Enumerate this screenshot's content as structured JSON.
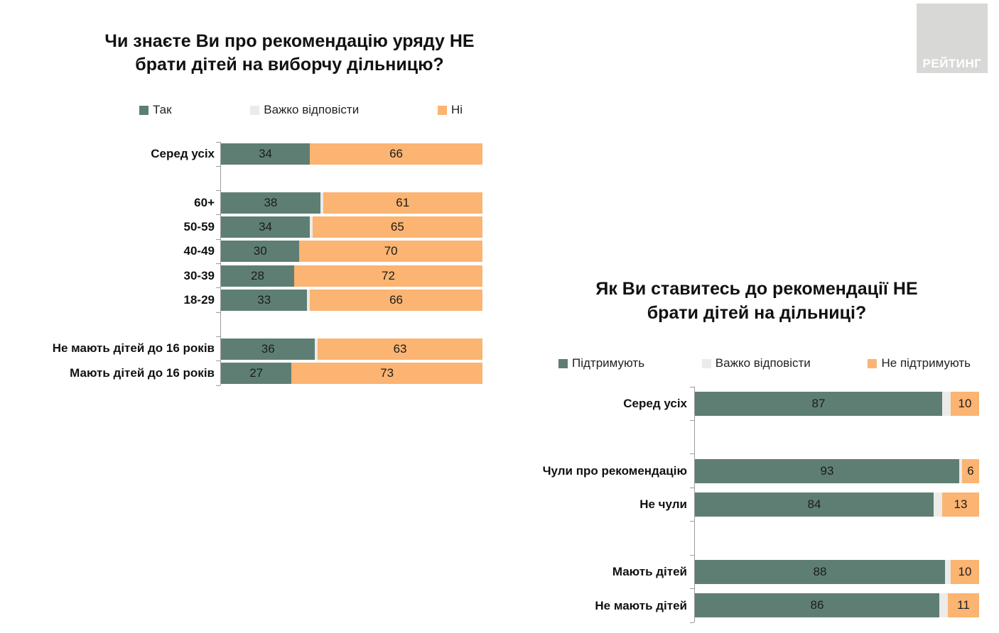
{
  "logo": {
    "label": "РЕЙТИНГ",
    "bg": "#d8d8d6",
    "text_color": "#ffffff"
  },
  "colors": {
    "green": "#5e7e74",
    "gray": "#ebebe9",
    "orange": "#fbb471",
    "axis": "#9c9c9c",
    "text": "#111111"
  },
  "chart_data": [
    {
      "type": "bar",
      "orientation": "horizontal",
      "stacked": true,
      "xlim": [
        0,
        100
      ],
      "unit": "%",
      "grid": false,
      "legend_position": "top",
      "title": "Чи знаєте Ви про рекомендацію уряду НЕ брати дітей на виборчу дільницю?",
      "title_lines": [
        "Чи знаєте Ви про рекомендацію уряду НЕ",
        "брати дітей на виборчу дільницю?"
      ],
      "series": [
        {
          "name": "Так",
          "color": "#5e7e74",
          "show_values": true
        },
        {
          "name": "Важко відповісти",
          "color": "#ebebe9",
          "show_values": false
        },
        {
          "name": "Ні",
          "color": "#fbb471",
          "show_values": true
        }
      ],
      "groups": [
        [
          {
            "label": "Серед усіх",
            "values": [
              34,
              0,
              66
            ]
          }
        ],
        [
          {
            "label": "60+",
            "values": [
              38,
              1,
              61
            ]
          },
          {
            "label": "50-59",
            "values": [
              34,
              1,
              65
            ]
          },
          {
            "label": "40-49",
            "values": [
              30,
              0,
              70
            ]
          },
          {
            "label": "30-39",
            "values": [
              28,
              0,
              72
            ]
          },
          {
            "label": "18-29",
            "values": [
              33,
              1,
              66
            ]
          }
        ],
        [
          {
            "label": "Не мають дітей до 16 років",
            "values": [
              36,
              1,
              63
            ]
          },
          {
            "label": "Мають дітей до 16 років",
            "values": [
              27,
              0,
              73
            ]
          }
        ]
      ]
    },
    {
      "type": "bar",
      "orientation": "horizontal",
      "stacked": true,
      "xlim": [
        0,
        100
      ],
      "unit": "%",
      "grid": false,
      "legend_position": "top",
      "title": "Як Ви ставитесь до рекомендації НЕ брати дітей на дільниці?",
      "title_lines": [
        "Як Ви ставитесь до рекомендації НЕ",
        "брати дітей на дільниці?"
      ],
      "series": [
        {
          "name": "Підтримують",
          "color": "#5e7e74",
          "show_values": true
        },
        {
          "name": "Важко відповісти",
          "color": "#ebebe9",
          "show_values": false
        },
        {
          "name": "Не підтримують",
          "color": "#fbb471",
          "show_values": true
        }
      ],
      "groups": [
        [
          {
            "label": "Серед усіх",
            "values": [
              87,
              3,
              10
            ]
          }
        ],
        [
          {
            "label": "Чули про рекомендацію",
            "values": [
              93,
              1,
              6
            ]
          },
          {
            "label": "Не чули",
            "values": [
              84,
              3,
              13
            ]
          }
        ],
        [
          {
            "label": "Мають дітей",
            "values": [
              88,
              2,
              10
            ]
          },
          {
            "label": "Не мають дітей",
            "values": [
              86,
              3,
              11
            ]
          }
        ]
      ]
    }
  ]
}
